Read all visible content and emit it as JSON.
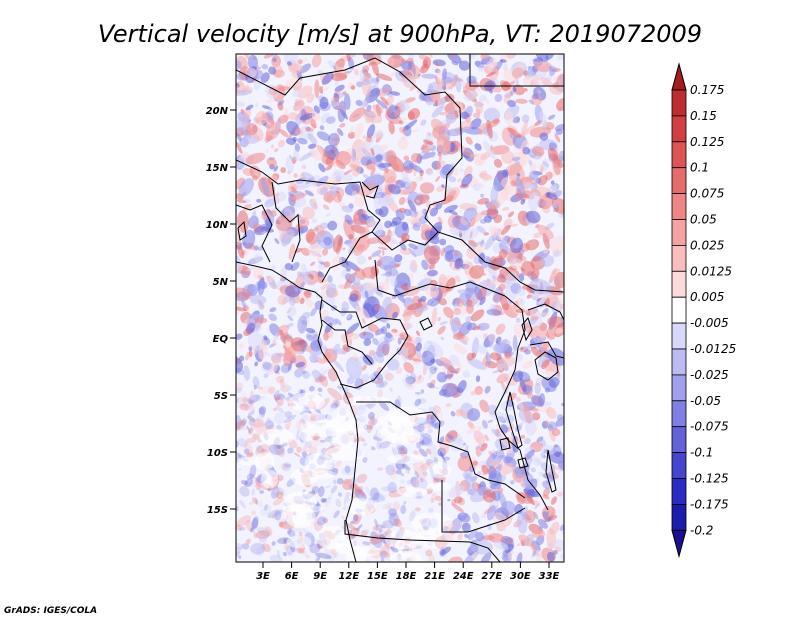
{
  "title": "Vertical velocity [m/s] at 900hPa, VT: 2019072009",
  "footer": "GrADS: IGES/COLA",
  "lat_ticks": [
    "20N",
    "15N",
    "10N",
    "5N",
    "EQ",
    "5S",
    "10S",
    "15S"
  ],
  "lon_ticks": [
    "3E",
    "6E",
    "9E",
    "12E",
    "15E",
    "18E",
    "21E",
    "24E",
    "27E",
    "30E",
    "33E"
  ],
  "colorbar_labels": [
    "0.175",
    "0.15",
    "0.125",
    "0.1",
    "0.075",
    "0.05",
    "0.025",
    "0.0125",
    "0.005",
    "-0.005",
    "-0.0125",
    "-0.025",
    "-0.05",
    "-0.075",
    "-0.1",
    "-0.125",
    "-0.175",
    "-0.2"
  ],
  "colorbar_colors": [
    "#a61c1c",
    "#be2d2d",
    "#d13f3f",
    "#de5454",
    "#e66b6b",
    "#ee8686",
    "#f4a2a2",
    "#f8bebe",
    "#fcdada",
    "#ffffff",
    "#d8d8fa",
    "#bcbcf3",
    "#9f9fec",
    "#8080e4",
    "#6262db",
    "#4545d0",
    "#2b2bc3",
    "#1c1cae",
    "#1a1090"
  ]
}
